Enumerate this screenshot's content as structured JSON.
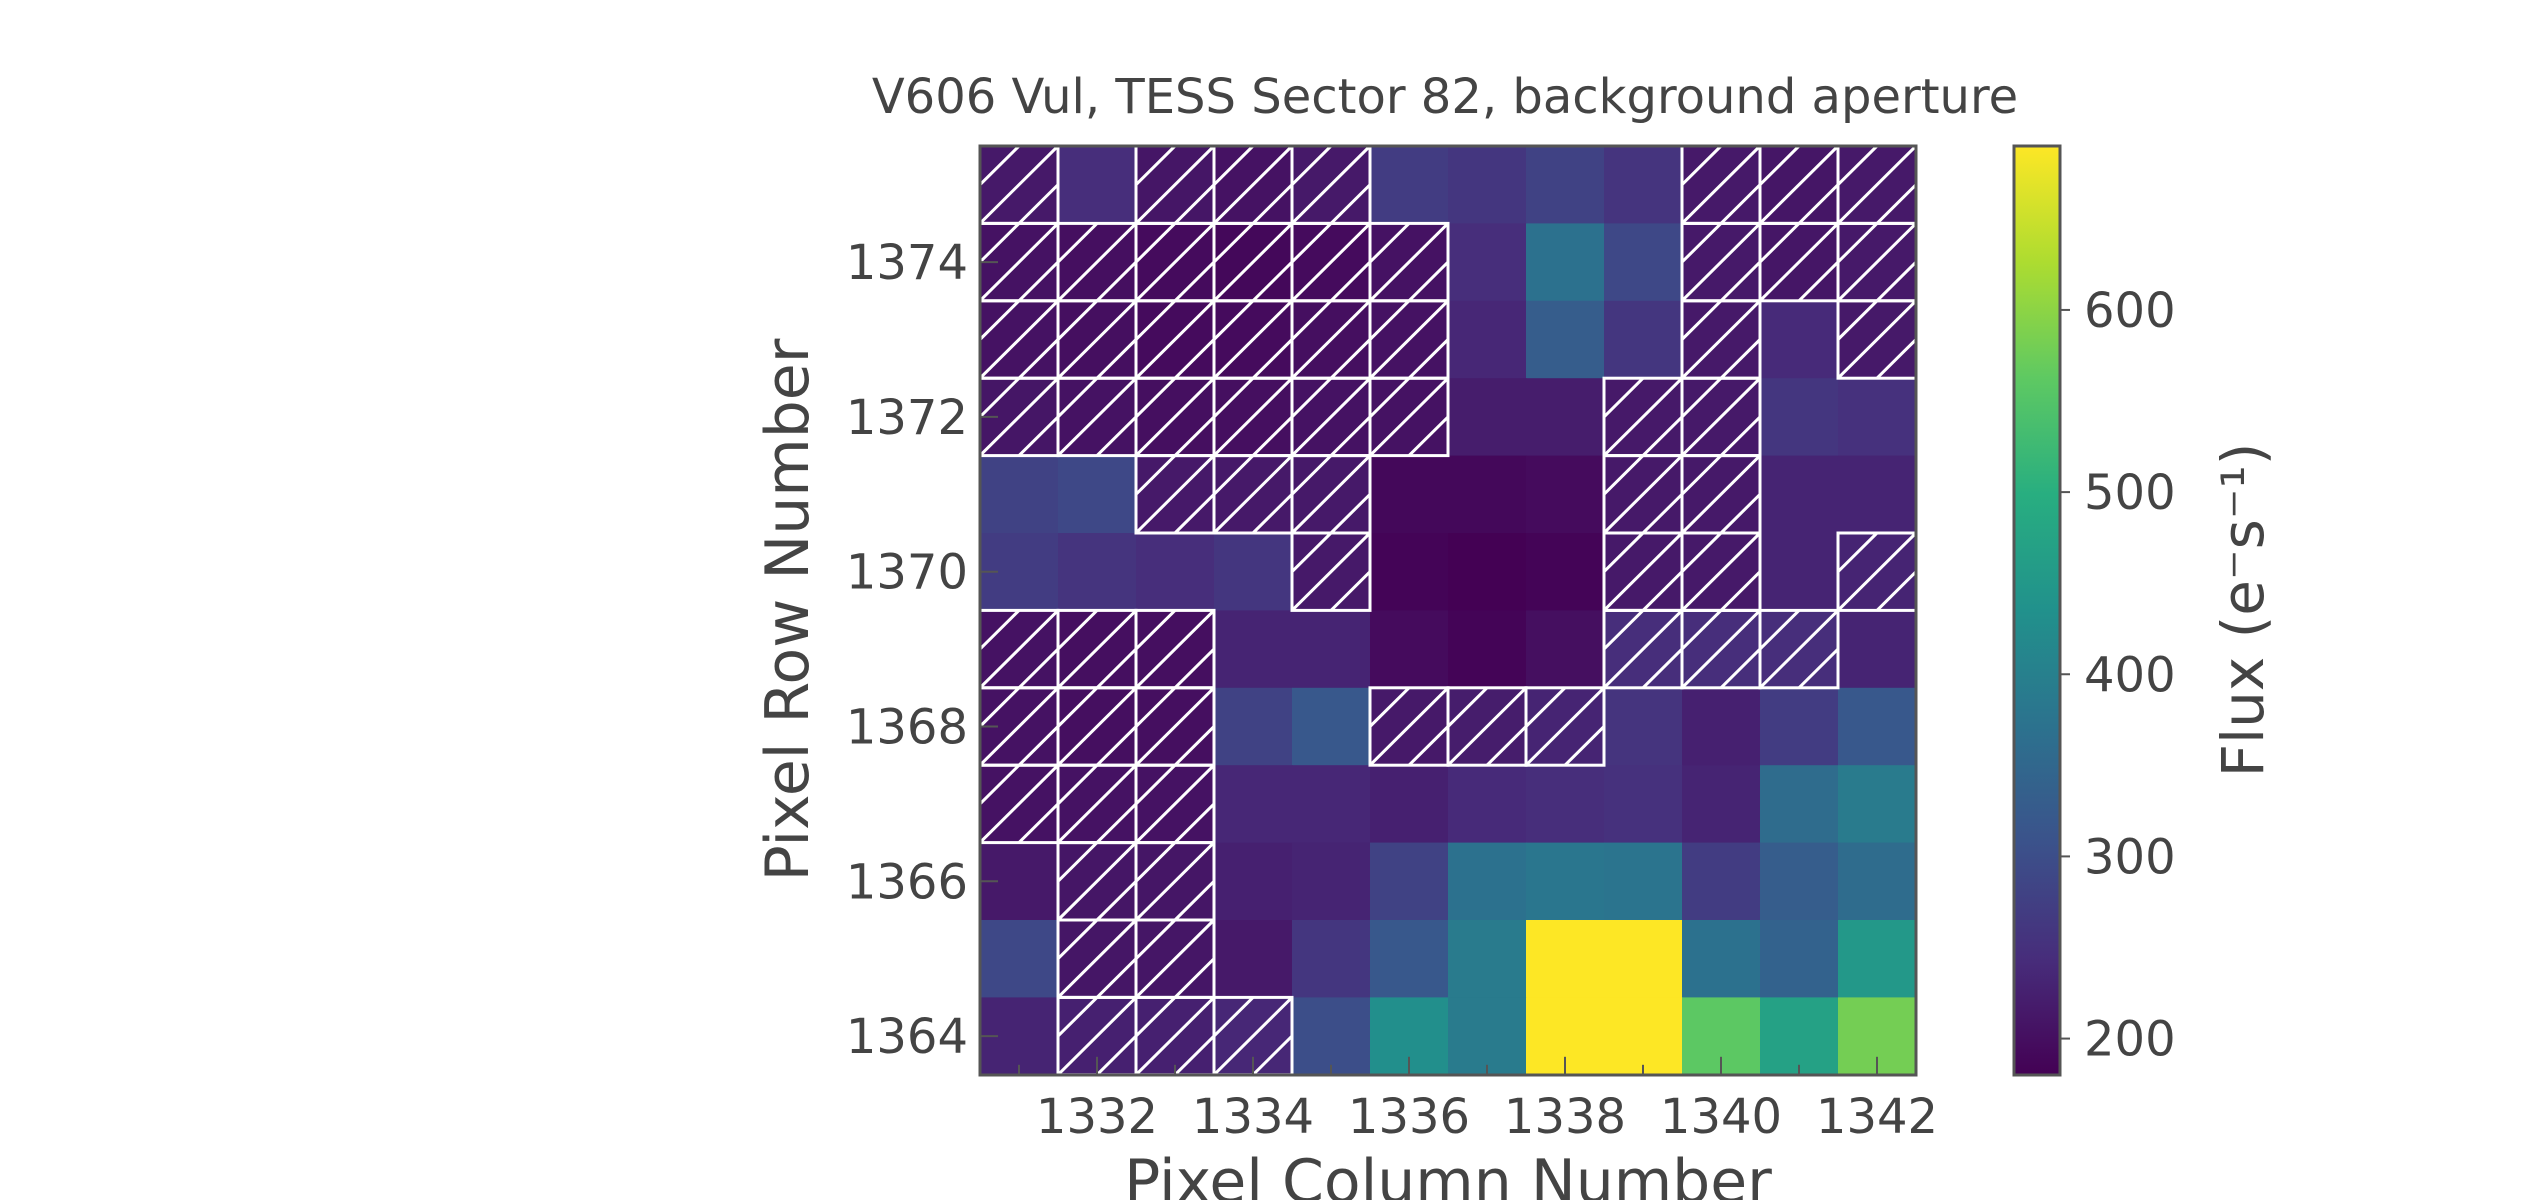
{
  "chart_data": {
    "type": "heatmap",
    "title": "V606 Vul, TESS Sector 82, background aperture",
    "xlabel": "Pixel Column Number",
    "ylabel": "Pixel Row Number",
    "colorbar_label": "Flux (e⁻s⁻¹)",
    "colormap": "viridis",
    "color_range": [
      180,
      690
    ],
    "x_columns": [
      1331,
      1332,
      1333,
      1334,
      1335,
      1336,
      1337,
      1338,
      1339,
      1340,
      1341,
      1342
    ],
    "y_rows_top_to_bottom": [
      1375,
      1374,
      1373,
      1372,
      1371,
      1370,
      1369,
      1368,
      1367,
      1366,
      1365,
      1364
    ],
    "x_ticks": [
      1332,
      1334,
      1336,
      1338,
      1340,
      1342
    ],
    "y_ticks": [
      1364,
      1366,
      1368,
      1370,
      1372,
      1374
    ],
    "colorbar_ticks": [
      200,
      300,
      400,
      500,
      600
    ],
    "flux": [
      [
        215,
        245,
        210,
        205,
        215,
        270,
        260,
        280,
        255,
        215,
        210,
        215
      ],
      [
        205,
        200,
        195,
        190,
        195,
        205,
        245,
        370,
        290,
        215,
        210,
        215
      ],
      [
        205,
        200,
        195,
        195,
        200,
        205,
        235,
        330,
        260,
        215,
        240,
        215
      ],
      [
        210,
        205,
        200,
        200,
        205,
        205,
        220,
        220,
        215,
        215,
        260,
        250
      ],
      [
        280,
        290,
        215,
        215,
        215,
        190,
        190,
        195,
        215,
        215,
        230,
        230
      ],
      [
        270,
        255,
        245,
        260,
        215,
        185,
        180,
        185,
        215,
        215,
        230,
        230
      ],
      [
        205,
        200,
        200,
        230,
        230,
        195,
        185,
        200,
        245,
        245,
        245,
        230
      ],
      [
        205,
        200,
        200,
        280,
        320,
        215,
        220,
        230,
        255,
        225,
        270,
        320
      ],
      [
        205,
        205,
        205,
        235,
        235,
        225,
        240,
        245,
        250,
        230,
        360,
        390
      ],
      [
        215,
        210,
        210,
        225,
        230,
        280,
        370,
        380,
        375,
        270,
        330,
        360
      ],
      [
        290,
        210,
        210,
        215,
        260,
        320,
        390,
        690,
        690,
        370,
        340,
        450
      ],
      [
        230,
        225,
        225,
        235,
        300,
        430,
        390,
        690,
        690,
        560,
        470,
        580
      ]
    ],
    "aperture_mask": [
      [
        1,
        0,
        1,
        1,
        1,
        0,
        0,
        0,
        0,
        1,
        1,
        1
      ],
      [
        1,
        1,
        1,
        1,
        1,
        1,
        0,
        0,
        0,
        1,
        1,
        1
      ],
      [
        1,
        1,
        1,
        1,
        1,
        1,
        0,
        0,
        0,
        1,
        0,
        1
      ],
      [
        1,
        1,
        1,
        1,
        1,
        1,
        0,
        0,
        1,
        1,
        0,
        0
      ],
      [
        0,
        0,
        1,
        1,
        1,
        0,
        0,
        0,
        1,
        1,
        0,
        0
      ],
      [
        0,
        0,
        0,
        0,
        1,
        0,
        0,
        0,
        1,
        1,
        0,
        1
      ],
      [
        1,
        1,
        1,
        0,
        0,
        0,
        0,
        0,
        1,
        1,
        1,
        0
      ],
      [
        1,
        1,
        1,
        0,
        0,
        1,
        1,
        1,
        0,
        0,
        0,
        0
      ],
      [
        1,
        1,
        1,
        0,
        0,
        0,
        0,
        0,
        0,
        0,
        0,
        0
      ],
      [
        0,
        1,
        1,
        0,
        0,
        0,
        0,
        0,
        0,
        0,
        0,
        0
      ],
      [
        0,
        1,
        1,
        0,
        0,
        0,
        0,
        0,
        0,
        0,
        0,
        0
      ],
      [
        0,
        1,
        1,
        1,
        0,
        0,
        0,
        0,
        0,
        0,
        0,
        0
      ]
    ],
    "grid": false,
    "legend": "colorbar-right"
  }
}
